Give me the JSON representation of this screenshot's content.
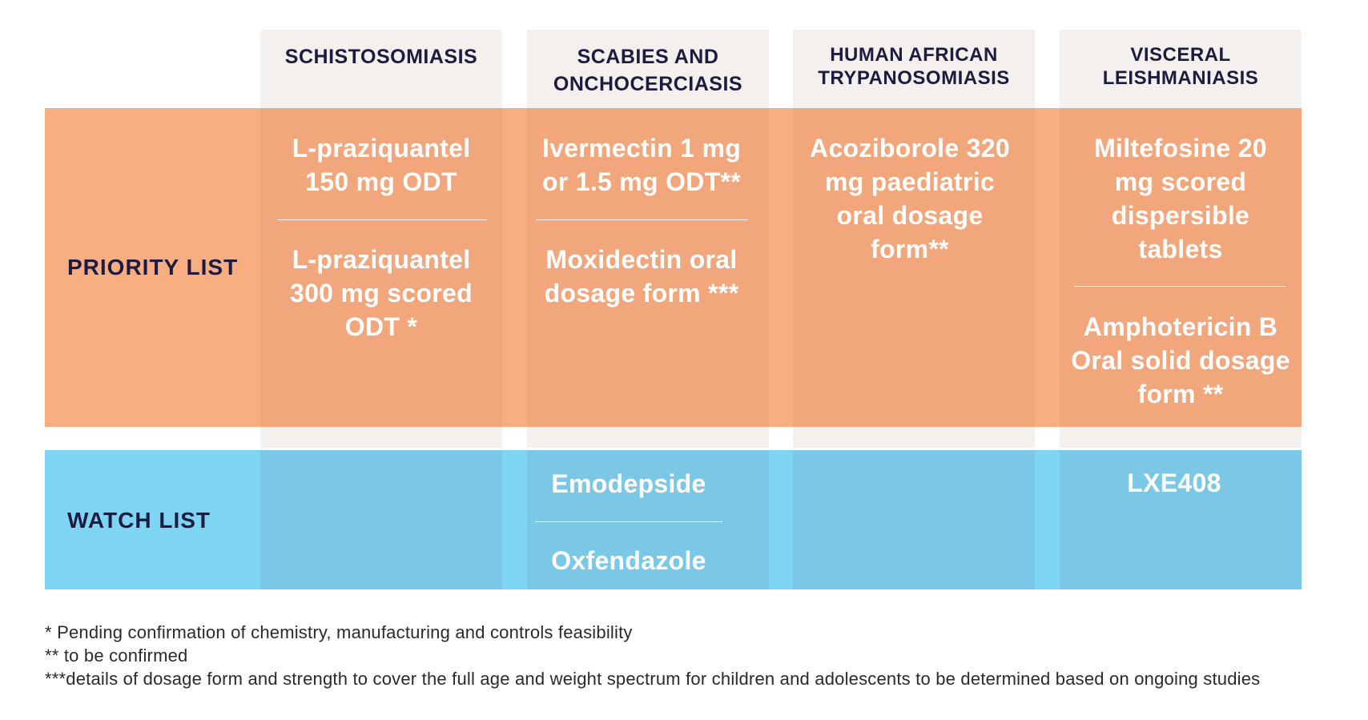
{
  "columns": [
    {
      "label": "SCHISTOSOMIASIS"
    },
    {
      "label": "SCABIES AND ONCHOCERCIASIS"
    },
    {
      "label": "HUMAN AFRICAN TRYPANOSOMIASIS"
    },
    {
      "label": "VISCERAL LEISHMANIASIS"
    }
  ],
  "priority": {
    "label": "PRIORITY LIST",
    "cells": [
      [
        "L-praziquantel 150 mg ODT",
        "L-praziquantel 300 mg scored ODT *"
      ],
      [
        "Ivermectin 1 mg or 1.5 mg ODT**",
        "Moxidectin oral dosage form ***"
      ],
      [
        "Acoziborole 320 mg paediatric oral dosage form**"
      ],
      [
        "Miltefosine 20 mg scored dispersible tablets",
        "Amphotericin B Oral solid dosage form **"
      ]
    ]
  },
  "watch": {
    "label": "WATCH LIST",
    "cells": [
      [],
      [
        "Emodepside",
        "Oxfendazole"
      ],
      [],
      [
        "LXE408"
      ]
    ]
  },
  "footnotes": [
    " * Pending confirmation of chemistry, manufacturing and controls feasibility",
    "** to be confirmed",
    "***details of dosage form and strength to cover the full age and weight spectrum for children and adolescents to be determined based on ongoing studies"
  ],
  "colors": {
    "priority_band": "#f9ae82",
    "priority_column": "#f1a67c",
    "watch_band": "#7dd4f3",
    "watch_column": "#7bc8e6",
    "header_bg": "#f3f0ee",
    "label_text": "#1d1b3f"
  }
}
